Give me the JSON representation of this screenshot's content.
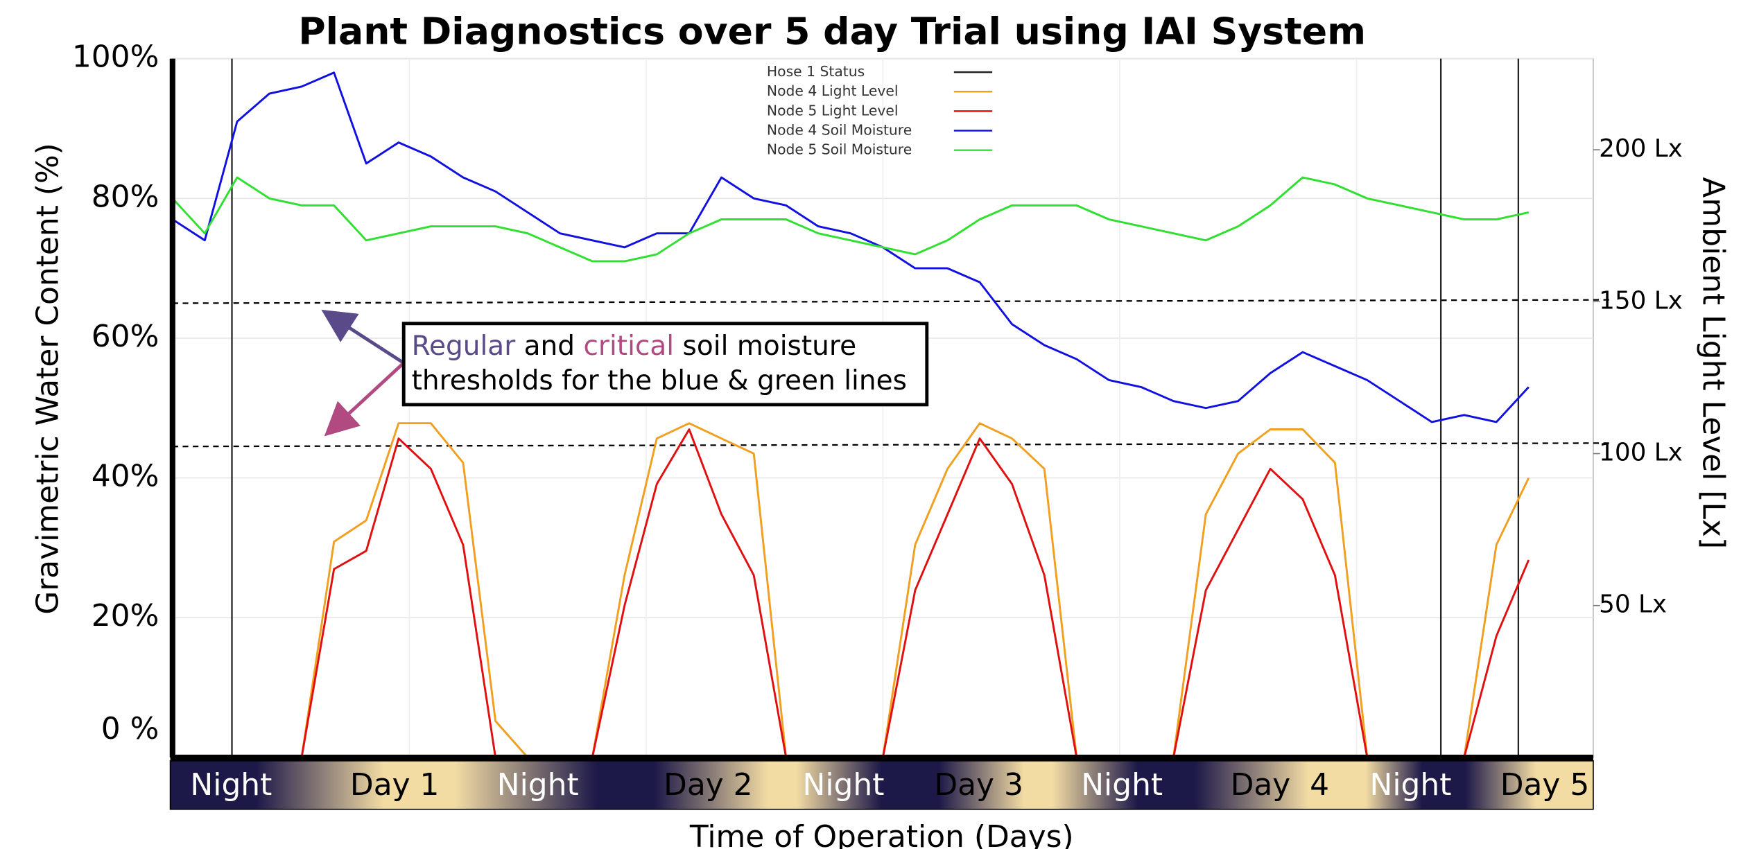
{
  "chart_data": {
    "type": "line",
    "title": "Plant Diagnostics over 5 day Trial using IAI System",
    "x_label": "Time of Operation (Days)",
    "y_label": "Gravimetric Water Content (%)",
    "y2_label": "Ambient Light Level [Lx]",
    "time_bands": [
      "Night",
      "Day 1",
      "Night",
      "Day 2",
      "Night",
      "Day 3",
      "Night",
      "Day  4",
      "Night",
      "Day 5"
    ],
    "xlim": [
      0,
      5.5
    ],
    "ylim": [
      0,
      100
    ],
    "y2lim": [
      0,
      230
    ],
    "yticks": [
      {
        "value": 0,
        "label": "0 %"
      },
      {
        "value": 20,
        "label": "20%"
      },
      {
        "value": 40,
        "label": "40%"
      },
      {
        "value": 60,
        "label": "60%"
      },
      {
        "value": 80,
        "label": "80%"
      },
      {
        "value": 100,
        "label": "100%"
      }
    ],
    "y2ticks": [
      {
        "value": 50,
        "label": "50 Lx"
      },
      {
        "value": 100,
        "label": "100 Lx"
      },
      {
        "value": 150,
        "label": "150 Lx"
      },
      {
        "value": 200,
        "label": "200 Lx"
      }
    ],
    "grid": true,
    "thresholds": [
      65,
      44.5
    ],
    "annotation": [
      "Regular",
      " and ",
      "critical",
      " soil moisture",
      "thresholds for the blue & green lines"
    ],
    "x": [
      0,
      0.125,
      0.25,
      0.375,
      0.5,
      0.625,
      0.75,
      0.875,
      1,
      1.125,
      1.25,
      1.375,
      1.5,
      1.625,
      1.75,
      1.875,
      2,
      2.125,
      2.25,
      2.375,
      2.5,
      2.625,
      2.75,
      2.875,
      3,
      3.125,
      3.25,
      3.375,
      3.5,
      3.625,
      3.75,
      3.875,
      4,
      4.125,
      4.25,
      4.375,
      4.5,
      4.625,
      4.75,
      4.875,
      5,
      5.125,
      5.25
    ],
    "series": [
      {
        "name": "Hose 1 Status",
        "color": "#222222",
        "x": [
          0.23,
          4.91,
          5.21
        ]
      },
      {
        "name": "Node 4 Light Level",
        "color": "#f0a020",
        "axis": "y2",
        "values": [
          0,
          0,
          0,
          0,
          0,
          71,
          78,
          110,
          110,
          97,
          12,
          0,
          0,
          0,
          60,
          105,
          110,
          105,
          100,
          0,
          0,
          0,
          0,
          70,
          95,
          110,
          105,
          95,
          0,
          0,
          0,
          0,
          80,
          100,
          108,
          108,
          97,
          0,
          0,
          0,
          0,
          70,
          92
        ]
      },
      {
        "name": "Node 5 Light Level",
        "color": "#e01010",
        "axis": "y2",
        "values": [
          0,
          0,
          0,
          0,
          0,
          62,
          68,
          105,
          95,
          70,
          0,
          0,
          0,
          0,
          50,
          90,
          108,
          80,
          60,
          0,
          0,
          0,
          0,
          55,
          80,
          105,
          90,
          60,
          0,
          0,
          0,
          0,
          55,
          75,
          95,
          85,
          60,
          0,
          0,
          0,
          0,
          40,
          65
        ]
      },
      {
        "name": "Node 4 Soil Moisture",
        "color": "#1010e0",
        "values": [
          77,
          74,
          91,
          95,
          96,
          98,
          85,
          88,
          86,
          83,
          81,
          78,
          75,
          74,
          73,
          75,
          75,
          83,
          80,
          79,
          76,
          75,
          73,
          70,
          70,
          68,
          62,
          59,
          57,
          54,
          53,
          51,
          50,
          51,
          55,
          58,
          56,
          54,
          51,
          48,
          49,
          48,
          53
        ]
      },
      {
        "name": "Node 5 Soil Moisture",
        "color": "#30e030",
        "values": [
          80,
          75,
          83,
          80,
          79,
          79,
          74,
          75,
          76,
          76,
          76,
          75,
          73,
          71,
          71,
          72,
          75,
          77,
          77,
          77,
          75,
          74,
          73,
          72,
          74,
          77,
          79,
          79,
          79,
          77,
          76,
          75,
          74,
          76,
          79,
          83,
          82,
          80,
          79,
          78,
          77,
          77,
          78
        ]
      }
    ]
  }
}
